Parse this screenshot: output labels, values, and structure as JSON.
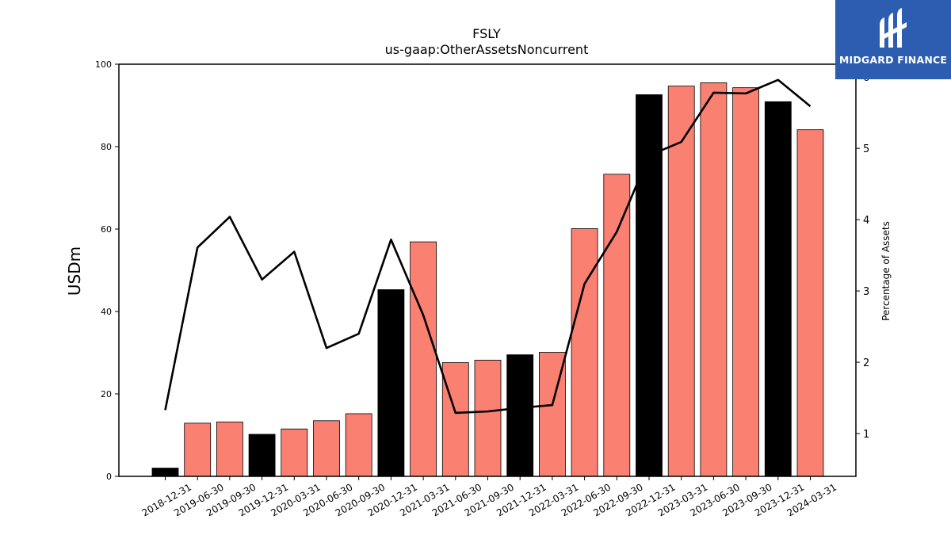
{
  "brand": {
    "name": "MIDGARD FINANCE",
    "bg_color": "#2c5db0"
  },
  "chart_data": {
    "type": "bar",
    "title": "FSLY",
    "subtitle": "us-gaap:OtherAssetsNoncurrent",
    "ylabel": "USDm",
    "y2label": "Percentage of Assets",
    "ylim": [
      0,
      100
    ],
    "y2lim": [
      0.4,
      6.18
    ],
    "yticks": [
      0,
      20,
      40,
      60,
      80,
      100
    ],
    "y2ticks": [
      1,
      2,
      3,
      4,
      5,
      6
    ],
    "categories": [
      "2018-12-31",
      "2019-06-30",
      "2019-09-30",
      "2019-12-31",
      "2020-03-31",
      "2020-06-30",
      "2020-09-30",
      "2020-12-31",
      "2021-03-31",
      "2021-06-30",
      "2021-09-30",
      "2021-12-31",
      "2022-03-31",
      "2022-06-30",
      "2022-09-30",
      "2022-12-31",
      "2023-03-31",
      "2023-06-30",
      "2023-09-30",
      "2023-12-31",
      "2024-03-31"
    ],
    "series": [
      {
        "type": "bar",
        "values": [
          2.0,
          12.9,
          13.2,
          10.2,
          11.5,
          13.5,
          15.2,
          45.3,
          56.9,
          27.6,
          28.2,
          29.5,
          30.1,
          60.1,
          73.3,
          92.6,
          94.7,
          95.5,
          94.3,
          90.9,
          84.1
        ],
        "colors": [
          "#000000",
          "#fa8072",
          "#fa8072",
          "#000000",
          "#fa8072",
          "#fa8072",
          "#fa8072",
          "#000000",
          "#fa8072",
          "#fa8072",
          "#fa8072",
          "#000000",
          "#fa8072",
          "#fa8072",
          "#fa8072",
          "#000000",
          "#fa8072",
          "#fa8072",
          "#fa8072",
          "#000000",
          "#fa8072"
        ]
      },
      {
        "type": "line",
        "axis": "right",
        "values": [
          1.33,
          3.61,
          4.04,
          3.16,
          3.55,
          2.2,
          2.4,
          3.72,
          2.66,
          1.29,
          1.31,
          1.36,
          1.4,
          3.1,
          3.83,
          4.9,
          5.09,
          5.78,
          5.77,
          5.96,
          5.59
        ],
        "color": "#000000"
      }
    ]
  }
}
